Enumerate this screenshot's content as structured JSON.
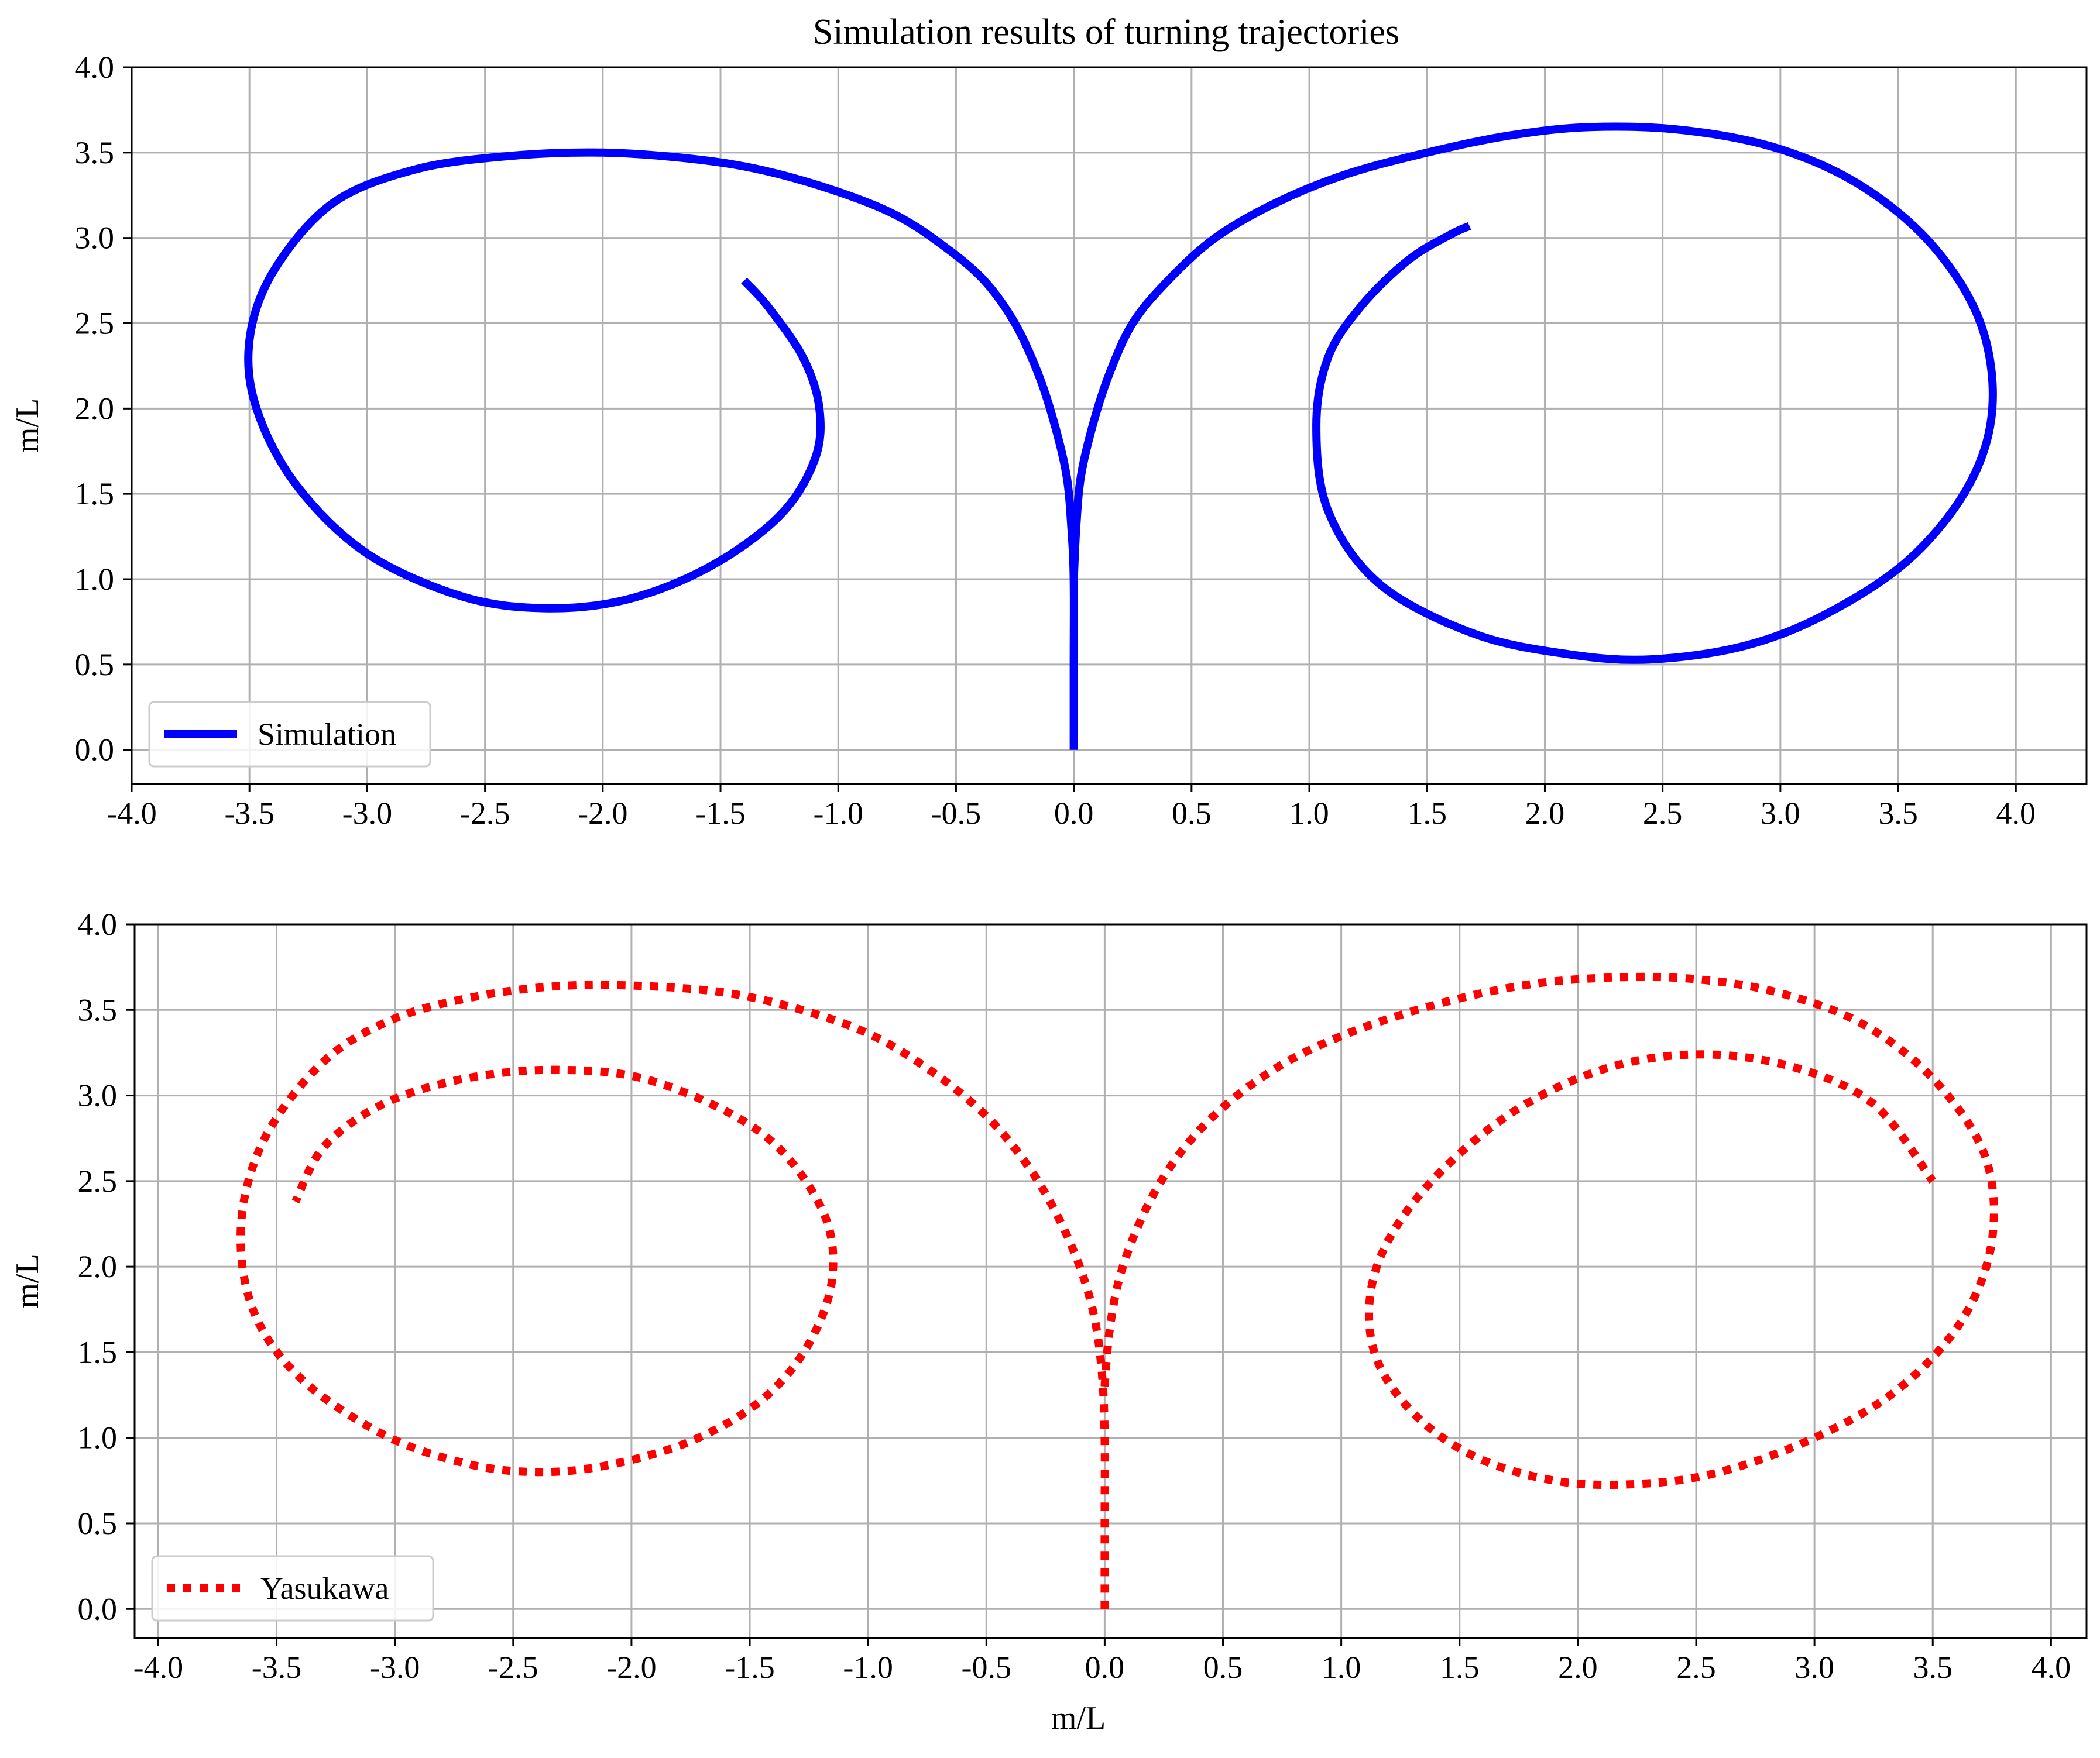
{
  "figure": {
    "title": "Simulation results of turning trajectories"
  },
  "chart_data": [
    {
      "type": "line",
      "title": "Simulation results of turning trajectories",
      "xlabel": "",
      "ylabel": "m/L",
      "xlim": [
        -4.0,
        4.3
      ],
      "ylim": [
        -0.2,
        4.0
      ],
      "xticks": [
        -4.0,
        -3.5,
        -3.0,
        -2.5,
        -2.0,
        -1.5,
        -1.0,
        -0.5,
        0.0,
        0.5,
        1.0,
        1.5,
        2.0,
        2.5,
        3.0,
        3.5,
        4.0
      ],
      "yticks": [
        0.0,
        0.5,
        1.0,
        1.5,
        2.0,
        2.5,
        3.0,
        3.5,
        4.0
      ],
      "grid": true,
      "legend": "lower-left",
      "series": [
        {
          "name": "Simulation",
          "color": "#0000ff",
          "style": "solid",
          "x": [
            0.0,
            0.0,
            0.0,
            -0.01,
            -0.03,
            -0.08,
            -0.15,
            -0.25,
            -0.38,
            -0.55,
            -0.75,
            -1.0,
            -1.3,
            -1.6,
            -2.0,
            -2.4,
            -2.8,
            -3.15,
            -3.4,
            -3.5,
            -3.47,
            -3.3,
            -3.0,
            -2.6,
            -2.25,
            -1.9,
            -1.55,
            -1.25,
            -1.1,
            -1.08,
            -1.15,
            -1.3,
            -1.4
          ],
          "y": [
            0.0,
            0.5,
            1.0,
            1.3,
            1.6,
            1.9,
            2.2,
            2.5,
            2.75,
            2.95,
            3.13,
            3.27,
            3.39,
            3.46,
            3.5,
            3.48,
            3.4,
            3.2,
            2.8,
            2.4,
            2.0,
            1.55,
            1.15,
            0.9,
            0.83,
            0.88,
            1.07,
            1.37,
            1.7,
            2.0,
            2.3,
            2.6,
            2.75
          ]
        },
        {
          "name": "",
          "color": "#0000ff",
          "style": "solid",
          "x": [
            0.0,
            0.01,
            0.03,
            0.08,
            0.15,
            0.25,
            0.4,
            0.6,
            0.85,
            1.15,
            1.5,
            1.85,
            2.2,
            2.6,
            3.0,
            3.35,
            3.65,
            3.85,
            3.9,
            3.8,
            3.55,
            3.2,
            2.85,
            2.45,
            2.1,
            1.7,
            1.3,
            1.08,
            1.03,
            1.08,
            1.22,
            1.42,
            1.6,
            1.68
          ],
          "y": [
            1.0,
            1.3,
            1.6,
            1.9,
            2.2,
            2.5,
            2.75,
            3.0,
            3.2,
            3.37,
            3.5,
            3.6,
            3.65,
            3.63,
            3.52,
            3.3,
            2.95,
            2.5,
            2.0,
            1.55,
            1.12,
            0.8,
            0.61,
            0.53,
            0.56,
            0.68,
            0.97,
            1.4,
            1.9,
            2.3,
            2.6,
            2.87,
            3.02,
            3.07
          ]
        }
      ]
    },
    {
      "type": "line",
      "title": "",
      "xlabel": "m/L",
      "ylabel": "m/L",
      "xlim": [
        -4.1,
        4.15
      ],
      "ylim": [
        -0.17,
        4.0
      ],
      "xticks": [
        -4.0,
        -3.5,
        -3.0,
        -2.5,
        -2.0,
        -1.5,
        -1.0,
        -0.5,
        0.0,
        0.5,
        1.0,
        1.5,
        2.0,
        2.5,
        3.0,
        3.5,
        4.0
      ],
      "yticks": [
        0.0,
        0.5,
        1.0,
        1.5,
        2.0,
        2.5,
        3.0,
        3.5,
        4.0
      ],
      "grid": true,
      "legend": "lower-left",
      "series": [
        {
          "name": "Yasukawa",
          "color": "#ff0000",
          "style": "dotted",
          "x": [
            0.0,
            0.0,
            0.0,
            -0.01,
            -0.04,
            -0.1,
            -0.2,
            -0.33,
            -0.5,
            -0.72,
            -0.98,
            -1.28,
            -1.6,
            -1.95,
            -2.3,
            -2.65,
            -3.0,
            -3.3,
            -3.55,
            -3.65,
            -3.6,
            -3.4,
            -3.05,
            -2.7,
            -2.4,
            -2.1,
            -1.75,
            -1.45,
            -1.25,
            -1.15,
            -1.2,
            -1.45,
            -1.9,
            -2.3,
            -2.7,
            -3.05,
            -3.3,
            -3.42
          ],
          "y": [
            0.0,
            0.5,
            1.0,
            1.35,
            1.68,
            1.98,
            2.3,
            2.6,
            2.88,
            3.13,
            3.35,
            3.5,
            3.6,
            3.64,
            3.64,
            3.58,
            3.45,
            3.2,
            2.75,
            2.25,
            1.75,
            1.35,
            1.02,
            0.85,
            0.8,
            0.84,
            0.98,
            1.22,
            1.55,
            1.95,
            2.35,
            2.78,
            3.08,
            3.15,
            3.1,
            2.95,
            2.7,
            2.38
          ]
        },
        {
          "name": "",
          "color": "#ff0000",
          "style": "dotted",
          "x": [
            0.0,
            0.02,
            0.06,
            0.13,
            0.23,
            0.37,
            0.56,
            0.8,
            1.1,
            1.45,
            1.8,
            2.15,
            2.5,
            2.85,
            3.2,
            3.5,
            3.72,
            3.75,
            3.62,
            3.35,
            3.0,
            2.6,
            2.25,
            1.9,
            1.55,
            1.28,
            1.13,
            1.15,
            1.35,
            1.7,
            2.1,
            2.5,
            2.9,
            3.25,
            3.5
          ],
          "y": [
            1.3,
            1.62,
            1.92,
            2.2,
            2.48,
            2.75,
            3.0,
            3.22,
            3.4,
            3.55,
            3.65,
            3.69,
            3.68,
            3.6,
            3.42,
            3.1,
            2.65,
            2.15,
            1.68,
            1.28,
            1.0,
            0.8,
            0.73,
            0.75,
            0.9,
            1.18,
            1.55,
            2.0,
            2.45,
            2.88,
            3.15,
            3.24,
            3.17,
            2.95,
            2.5
          ]
        }
      ]
    }
  ]
}
